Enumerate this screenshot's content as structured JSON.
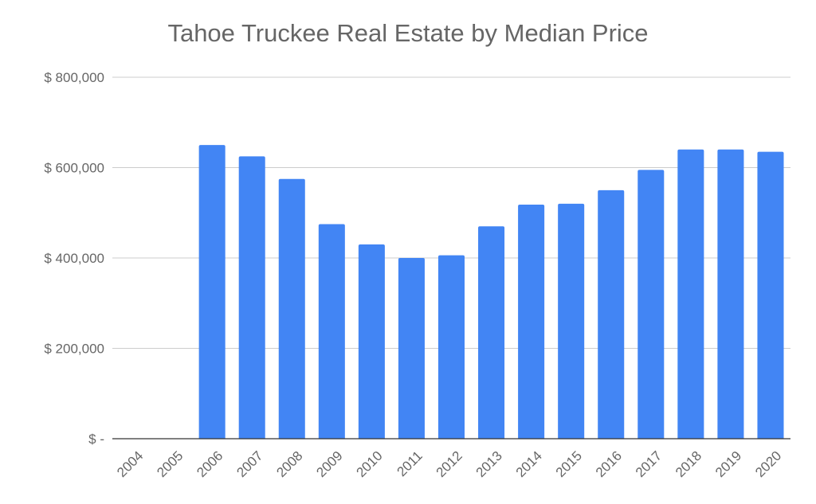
{
  "chart_data": {
    "type": "bar",
    "title": "Tahoe Truckee Real Estate by Median Price",
    "xlabel": "",
    "ylabel": "",
    "categories": [
      "2004",
      "2005",
      "2006",
      "2007",
      "2008",
      "2009",
      "2010",
      "2011",
      "2012",
      "2013",
      "2014",
      "2015",
      "2016",
      "2017",
      "2018",
      "2019",
      "2020"
    ],
    "values": [
      0,
      0,
      650000,
      625000,
      575000,
      475000,
      430000,
      400000,
      406000,
      470000,
      518000,
      520000,
      550000,
      595000,
      640000,
      640000,
      635000
    ],
    "ylim": [
      0,
      800000
    ],
    "y_ticks": [
      0,
      200000,
      400000,
      600000,
      800000
    ],
    "y_tick_labels": [
      "$ -",
      "$ 200,000",
      "$ 400,000",
      "$ 600,000",
      "$ 800,000"
    ],
    "grid": true,
    "legend": "none",
    "bar_color": "#4285f4",
    "grid_color": "#cccccc",
    "axis_color": "#333333",
    "text_color": "#666666"
  }
}
